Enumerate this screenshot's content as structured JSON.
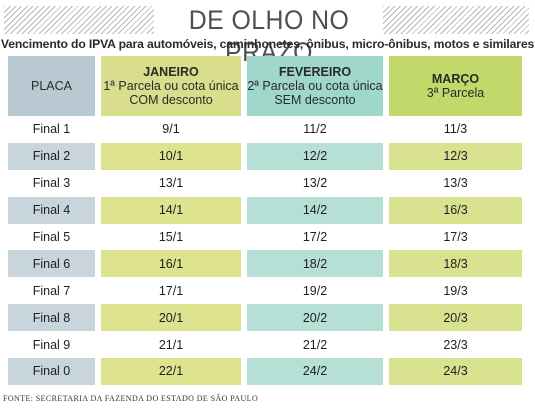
{
  "header": {
    "title": "DE OLHO NO PRAZO",
    "subtitle": "Vencimento do IPVA para automóveis, caminhonetes, ônibus, micro-ônibus, motos e similares"
  },
  "table": {
    "columns": [
      {
        "name": "",
        "lines": [
          "PLACA"
        ]
      },
      {
        "name": "JANEIRO",
        "lines": [
          "1ª Parcela ou cota única",
          "COM desconto"
        ]
      },
      {
        "name": "FEVEREIRO",
        "lines": [
          "2ª Parcela ou cota única",
          "SEM desconto"
        ]
      },
      {
        "name": "MARÇO",
        "lines": [
          "3ª Parcela"
        ]
      }
    ],
    "rows": [
      {
        "placa": "Final 1",
        "jan": "9/1",
        "fev": "11/2",
        "mar": "11/3"
      },
      {
        "placa": "Final 2",
        "jan": "10/1",
        "fev": "12/2",
        "mar": "12/3"
      },
      {
        "placa": "Final 3",
        "jan": "13/1",
        "fev": "13/2",
        "mar": "13/3"
      },
      {
        "placa": "Final 4",
        "jan": "14/1",
        "fev": "14/2",
        "mar": "16/3"
      },
      {
        "placa": "Final 5",
        "jan": "15/1",
        "fev": "17/2",
        "mar": "17/3"
      },
      {
        "placa": "Final 6",
        "jan": "16/1",
        "fev": "18/2",
        "mar": "18/3"
      },
      {
        "placa": "Final 7",
        "jan": "17/1",
        "fev": "19/2",
        "mar": "19/3"
      },
      {
        "placa": "Final 8",
        "jan": "20/1",
        "fev": "20/2",
        "mar": "20/3"
      },
      {
        "placa": "Final 9",
        "jan": "21/1",
        "fev": "21/2",
        "mar": "23/3"
      },
      {
        "placa": "Final 0",
        "jan": "22/1",
        "fev": "24/2",
        "mar": "24/3"
      }
    ]
  },
  "source": "FONTE: SECRETARIA DA FAZENDA DO ESTADO DE SÃO PAULO",
  "colors": {
    "placa_header": "#b9c9d2",
    "janeiro_header": "#d9de8c",
    "fevereiro_header": "#9fd7cb",
    "marco_header": "#c3d86a"
  }
}
